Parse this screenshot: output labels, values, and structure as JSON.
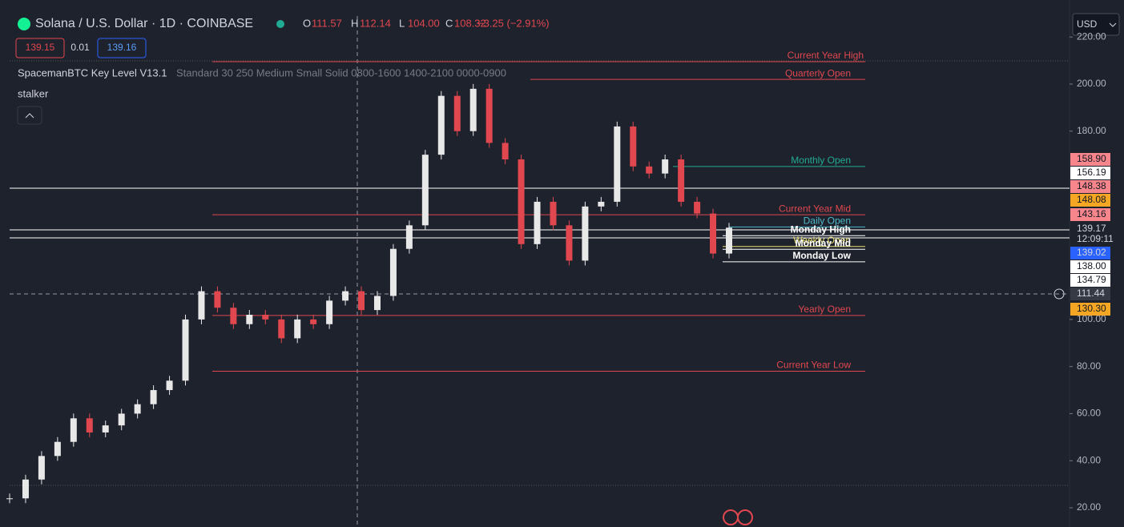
{
  "header": {
    "title": "Solana / U.S. Dollar · 1D · COINBASE",
    "ohlc": [
      {
        "key": "O",
        "value": "111.57"
      },
      {
        "key": "H",
        "value": "112.14"
      },
      {
        "key": "L",
        "value": "104.00"
      },
      {
        "key": "C",
        "value": "108.32"
      }
    ],
    "change": "−3.25 (−2.91%)",
    "sell": "139.15",
    "spread": "0.01",
    "buy": "139.16",
    "currency": "USD"
  },
  "indicator": {
    "name": "SpacemanBTC Key Level V13.1",
    "params": "Standard 30 250 Medium Small Solid 0800-1600 1400-2100 0000-0900",
    "second": "stalker"
  },
  "chart_data": {
    "type": "candlestick",
    "up_color": "#e8e8e8",
    "down_color": "#e0474f",
    "values": [
      24,
      32,
      42,
      48,
      58,
      52,
      55,
      60,
      64,
      70,
      74,
      100,
      112,
      105,
      98,
      102,
      100,
      92,
      100,
      98,
      108,
      112,
      104,
      110,
      130,
      140,
      170,
      195,
      180,
      198,
      175,
      168,
      132,
      150,
      140,
      125,
      148,
      150,
      182,
      165,
      162,
      168,
      150,
      145,
      128,
      139
    ],
    "ylim": [
      20,
      220
    ],
    "yticks": [
      {
        "value": 20,
        "label": "20.00"
      },
      {
        "value": 40,
        "label": "40.00"
      },
      {
        "value": 60,
        "label": "60.00"
      },
      {
        "value": 80,
        "label": "80.00"
      },
      {
        "value": 100,
        "label": "100.00"
      },
      {
        "value": 180,
        "label": "180.00"
      },
      {
        "value": 200,
        "label": "200.00"
      },
      {
        "value": 220,
        "label": "220.00"
      }
    ],
    "levels": [
      {
        "name": "Current Year High",
        "value": 209.5,
        "color": "#e0474f"
      },
      {
        "name": "Quarterly Open",
        "value": 202,
        "color": "#e0474f"
      },
      {
        "name": "Monthly Open",
        "value": 165,
        "color": "#22ab94"
      },
      {
        "name": "Current Year Mid",
        "value": 144.5,
        "color": "#e0474f"
      },
      {
        "name": "Daily Open",
        "value": 139.3,
        "color": "#4fb8c9"
      },
      {
        "name": "Monday High",
        "value": 135.6,
        "color": "#ffffff"
      },
      {
        "name": "Weekly Open",
        "value": 131,
        "color": "#e8e070"
      },
      {
        "name": "Monday Mid",
        "value": 129.8,
        "color": "#ffffff"
      },
      {
        "name": "Monday Low",
        "value": 124.5,
        "color": "#ffffff"
      },
      {
        "name": "Yearly Open",
        "value": 101.7,
        "color": "#e0474f"
      },
      {
        "name": "Current Year Low",
        "value": 78,
        "color": "#e0474f"
      }
    ],
    "price_tags": [
      {
        "label": "158.90",
        "color": "#f7868c"
      },
      {
        "label": "156.19",
        "color": "#ffffff"
      },
      {
        "label": "148.38",
        "color": "#f7868c"
      },
      {
        "label": "148.08",
        "color": "#f5a623"
      },
      {
        "label": "143.16",
        "color": "#f7868c"
      },
      {
        "label": "139.17",
        "color": "#1e222d"
      },
      {
        "label": "12:09:11",
        "color": "#1e222d"
      },
      {
        "label": "139.02",
        "color": "#2962ff"
      },
      {
        "label": "138.00",
        "color": "#ffffff"
      },
      {
        "label": "134.79",
        "color": "#ffffff"
      },
      {
        "label": "111.44",
        "color": "#363a45"
      },
      {
        "label": "130.30",
        "color": "#f5a623"
      }
    ]
  }
}
